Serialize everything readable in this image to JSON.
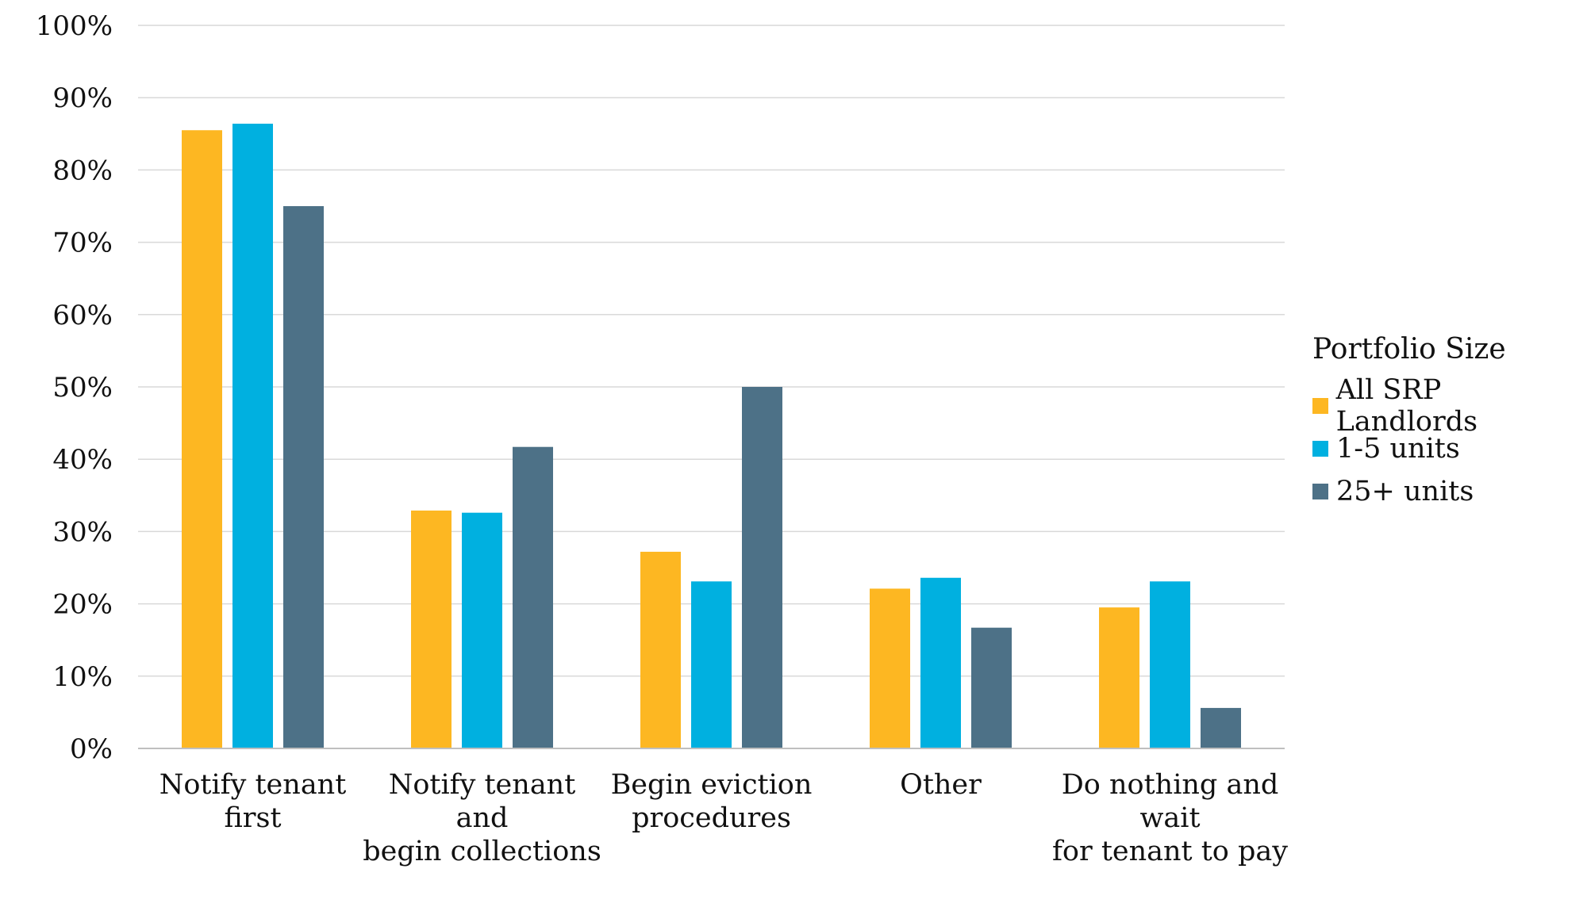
{
  "chart_data": {
    "type": "bar",
    "categories": [
      [
        "Notify tenant",
        "first"
      ],
      [
        "Notify tenant",
        "and",
        "begin collections"
      ],
      [
        "Begin eviction",
        "procedures"
      ],
      [
        "Other"
      ],
      [
        "Do nothing and",
        "wait",
        "for tenant to pay"
      ]
    ],
    "series": [
      {
        "name": "All SRP Landlords",
        "color": "#FDB722",
        "values": [
          85.5,
          32.9,
          27.2,
          22.1,
          19.5
        ]
      },
      {
        "name": "1-5 units",
        "color": "#00B0E0",
        "values": [
          86.4,
          32.6,
          23.1,
          23.6,
          23.1
        ]
      },
      {
        "name": "25+ units",
        "color": "#4D7187",
        "values": [
          75.0,
          41.7,
          50.0,
          16.7,
          5.6
        ]
      }
    ],
    "ylim": [
      0,
      100
    ],
    "yticks": [
      "0%",
      "10%",
      "20%",
      "30%",
      "40%",
      "50%",
      "60%",
      "70%",
      "80%",
      "90%",
      "100%"
    ],
    "grid": true,
    "legend": {
      "title": "Portfolio Size",
      "position": "right"
    }
  }
}
